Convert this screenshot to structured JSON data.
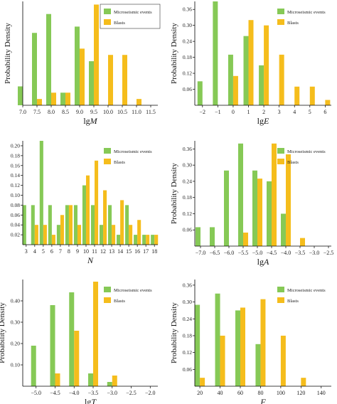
{
  "colors": {
    "micro": "#86c956",
    "blast": "#f5bd1c",
    "axis": "#000000"
  },
  "chart_data": [
    {
      "type": "bar",
      "xlabel": "lgM",
      "ylabel": "Probability Density",
      "xticks": [
        "7.0",
        "7.5",
        "8.0",
        "8.5",
        "9.0",
        "9.5",
        "10.0",
        "10.5",
        "11.0",
        "11.5"
      ],
      "xlim": [
        7.0,
        11.75
      ],
      "ylim": [
        0,
        0.33
      ],
      "yticks": [],
      "legend_position": "top-right",
      "legend_box": true,
      "series": [
        {
          "name": "Microseismic events",
          "color": "micro",
          "points": [
            [
              7.0,
              0.06
            ],
            [
              7.5,
              0.23
            ],
            [
              8.0,
              0.29
            ],
            [
              8.5,
              0.04
            ],
            [
              9.0,
              0.25
            ],
            [
              9.5,
              0.14
            ]
          ]
        },
        {
          "name": "Blasts",
          "color": "blast",
          "points": [
            [
              7.5,
              0.02
            ],
            [
              8.0,
              0.04
            ],
            [
              8.5,
              0.04
            ],
            [
              9.0,
              0.18
            ],
            [
              9.5,
              0.32
            ],
            [
              10.0,
              0.16
            ],
            [
              10.5,
              0.16
            ],
            [
              11.0,
              0.02
            ]
          ]
        }
      ]
    },
    {
      "type": "bar",
      "xlabel": "lgE",
      "ylabel": "Probability Density",
      "xticks": [
        "−2",
        "−1",
        "0",
        "1",
        "2",
        "3",
        "4",
        "5",
        "6"
      ],
      "xlim": [
        -2.5,
        6.4
      ],
      "ylim": [
        0,
        0.39
      ],
      "yticks": [
        "0.06",
        "0.12",
        "0.18",
        "0.24",
        "0.30",
        "0.36"
      ],
      "legend_position": "top-right",
      "legend_box": false,
      "series": [
        {
          "name": "Microseismic events",
          "color": "micro",
          "points": [
            [
              -2,
              0.09
            ],
            [
              -1,
              0.39
            ],
            [
              0,
              0.19
            ],
            [
              1,
              0.26
            ],
            [
              2,
              0.15
            ]
          ]
        },
        {
          "name": "Blasts",
          "color": "blast",
          "points": [
            [
              0,
              0.11
            ],
            [
              1,
              0.32
            ],
            [
              2,
              0.3
            ],
            [
              3,
              0.19
            ],
            [
              4,
              0.07
            ],
            [
              5,
              0.07
            ],
            [
              6,
              0.02
            ]
          ]
        }
      ]
    },
    {
      "type": "bar",
      "xlabel": "N",
      "ylabel": "",
      "xticks": [
        "3",
        "4",
        "5",
        "6",
        "7",
        "8",
        "9",
        "10",
        "11",
        "12",
        "13",
        "14",
        "15",
        "16",
        "17",
        "18"
      ],
      "xlim": [
        2.6,
        18.4
      ],
      "ylim": [
        0,
        0.21
      ],
      "yticks": [
        "0.02",
        "0.04",
        "0.06",
        "0.08",
        "0.10",
        "0.12",
        "0.14",
        "0.16",
        "0.18",
        "0.20"
      ],
      "legend_position": "top-right",
      "legend_box": false,
      "series": [
        {
          "name": "Microseismic events",
          "color": "micro",
          "points": [
            [
              3,
              0.08
            ],
            [
              4,
              0.08
            ],
            [
              5,
              0.21
            ],
            [
              6,
              0.08
            ],
            [
              7,
              0.04
            ],
            [
              8,
              0.08
            ],
            [
              9,
              0.08
            ],
            [
              10,
              0.12
            ],
            [
              11,
              0.08
            ],
            [
              12,
              0.04
            ],
            [
              13,
              0.08
            ],
            [
              14,
              0.02
            ],
            [
              15,
              0.08
            ],
            [
              16,
              0.02
            ],
            [
              17,
              0.02
            ],
            [
              18,
              0.02
            ]
          ]
        },
        {
          "name": "Blasts",
          "color": "blast",
          "points": [
            [
              4,
              0.04
            ],
            [
              5,
              0.04
            ],
            [
              6,
              0.02
            ],
            [
              7,
              0.06
            ],
            [
              8,
              0.08
            ],
            [
              9,
              0.04
            ],
            [
              10,
              0.14
            ],
            [
              11,
              0.17
            ],
            [
              12,
              0.11
            ],
            [
              13,
              0.04
            ],
            [
              14,
              0.09
            ],
            [
              15,
              0.04
            ],
            [
              16,
              0.05
            ],
            [
              17,
              0.02
            ],
            [
              18,
              0.02
            ]
          ]
        }
      ]
    },
    {
      "type": "bar",
      "xlabel": "lgA",
      "ylabel": "Probability Density",
      "xticks": [
        "−7.0",
        "−6.5",
        "−6.0",
        "−5.5",
        "−5.0",
        "−4.5",
        "−4.0",
        "−3.5",
        "−3.0",
        "−2.5"
      ],
      "xlim": [
        -7.2,
        -2.4
      ],
      "ylim": [
        0,
        0.39
      ],
      "yticks": [
        "0.06",
        "0.12",
        "0.18",
        "0.24",
        "0.30",
        "0.36"
      ],
      "legend_position": "top-right",
      "legend_box": false,
      "series": [
        {
          "name": "Microseismic events",
          "color": "micro",
          "points": [
            [
              -7.0,
              0.07
            ],
            [
              -6.5,
              0.07
            ],
            [
              -6.0,
              0.28
            ],
            [
              -5.5,
              0.38
            ],
            [
              -5.0,
              0.28
            ],
            [
              -4.5,
              0.24
            ],
            [
              -4.0,
              0.12
            ]
          ]
        },
        {
          "name": "Blasts",
          "color": "blast",
          "points": [
            [
              -5.5,
              0.05
            ],
            [
              -5.0,
              0.25
            ],
            [
              -4.5,
              0.38
            ],
            [
              -4.0,
              0.34
            ],
            [
              -3.5,
              0.03
            ]
          ]
        }
      ]
    },
    {
      "type": "bar",
      "xlabel": "lgT",
      "ylabel": "Probability Density",
      "xticks": [
        "−5.0",
        "−4.5",
        "−4.0",
        "−3.5",
        "−3.0",
        "−2.5",
        "−2.0"
      ],
      "xlim": [
        -5.35,
        -1.8
      ],
      "ylim": [
        0,
        0.5
      ],
      "yticks": [
        "0.10",
        "0.20",
        "0.30",
        "0.40"
      ],
      "legend_position": "top-right",
      "legend_box": false,
      "series": [
        {
          "name": "Microseismic events",
          "color": "micro",
          "points": [
            [
              -5.0,
              0.19
            ],
            [
              -4.5,
              0.38
            ],
            [
              -4.0,
              0.44
            ],
            [
              -3.5,
              0.06
            ],
            [
              -3.0,
              0.02
            ]
          ]
        },
        {
          "name": "Blasts",
          "color": "blast",
          "points": [
            [
              -4.5,
              0.06
            ],
            [
              -4.0,
              0.26
            ],
            [
              -3.5,
              0.49
            ],
            [
              -3.0,
              0.05
            ]
          ]
        }
      ]
    },
    {
      "type": "bar",
      "xlabel": "F",
      "ylabel": "Probability Density",
      "xticks": [
        "20",
        "40",
        "60",
        "80",
        "100",
        "120",
        "140"
      ],
      "xlim": [
        15,
        150
      ],
      "ylim": [
        0,
        0.38
      ],
      "yticks": [
        "0.06",
        "0.12",
        "0.18",
        "0.24",
        "0.30",
        "0.36"
      ],
      "legend_position": "top-right",
      "legend_box": false,
      "series": [
        {
          "name": "Microseismic events",
          "color": "micro",
          "points": [
            [
              20,
              0.29
            ],
            [
              40,
              0.33
            ],
            [
              60,
              0.27
            ],
            [
              80,
              0.15
            ]
          ]
        },
        {
          "name": "Blasts",
          "color": "blast",
          "points": [
            [
              20,
              0.03
            ],
            [
              40,
              0.18
            ],
            [
              60,
              0.28
            ],
            [
              80,
              0.31
            ],
            [
              100,
              0.18
            ],
            [
              120,
              0.03
            ]
          ]
        }
      ]
    }
  ]
}
